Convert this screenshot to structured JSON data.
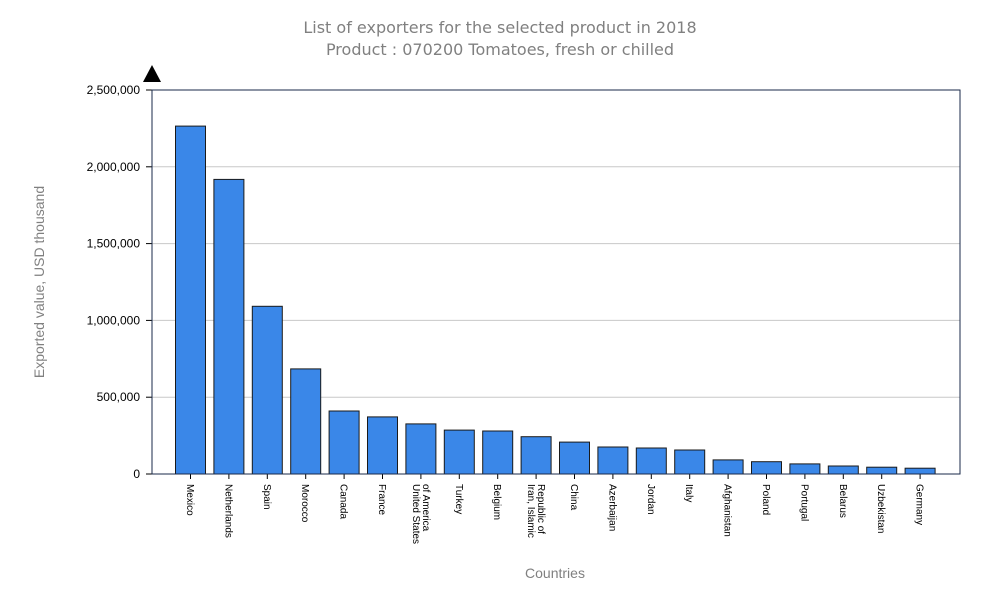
{
  "chart_data": {
    "type": "bar",
    "title": "List of exporters for the selected product in 2018",
    "subtitle": "Product : 070200 Tomatoes, fresh or chilled",
    "xlabel": "Countries",
    "ylabel": "Exported value, USD thousand",
    "ylim": [
      0,
      2500000
    ],
    "yticks": [
      0,
      500000,
      1000000,
      1500000,
      2000000,
      2500000
    ],
    "ytick_labels": [
      "0",
      "500,000",
      "1,000,000",
      "1,500,000",
      "2,000,000",
      "2,500,000"
    ],
    "grid": true,
    "bar_color": "#3a87e8",
    "categories": [
      [
        "Mexico"
      ],
      [
        "Netherlands"
      ],
      [
        "Spain"
      ],
      [
        "Morocco"
      ],
      [
        "Canada"
      ],
      [
        "France"
      ],
      [
        "United States",
        "of America"
      ],
      [
        "Turkey"
      ],
      [
        "Belgium"
      ],
      [
        "Iran, Islamic",
        "Republic of"
      ],
      [
        "China"
      ],
      [
        "Azerbaijan"
      ],
      [
        "Jordan"
      ],
      [
        "Italy"
      ],
      [
        "Afghanistan"
      ],
      [
        "Poland"
      ],
      [
        "Portugal"
      ],
      [
        "Belarus"
      ],
      [
        "Uzbekistan"
      ],
      [
        "Germany"
      ]
    ],
    "values": [
      2265000,
      1918000,
      1092000,
      684000,
      410000,
      372000,
      326000,
      286000,
      280000,
      243000,
      208000,
      176000,
      169000,
      156000,
      92000,
      80000,
      66000,
      52000,
      44000,
      38000
    ]
  }
}
